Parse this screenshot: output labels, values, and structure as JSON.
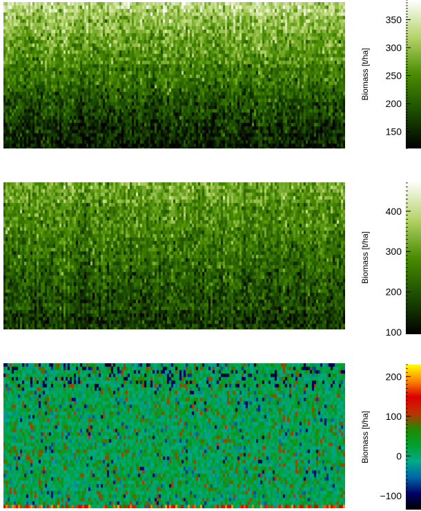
{
  "charts": [
    {
      "type": "heatmap",
      "colorbar": {
        "label": "Biomass [t/ha]",
        "range": [
          120,
          385
        ],
        "ticks": [
          150,
          200,
          250,
          300,
          350
        ],
        "colormap": [
          "#000000",
          "#1c4d00",
          "#4a8c00",
          "#b5d46a",
          "#ffffff"
        ]
      },
      "data_pattern": "vertical streaks; mean biomass increasing from bottom (~140) to top (~330)"
    },
    {
      "type": "heatmap",
      "colorbar": {
        "label": "Biomass [t/ha]",
        "range": [
          95,
          475
        ],
        "ticks": [
          100,
          200,
          300,
          400
        ],
        "colormap": [
          "#000000",
          "#1c4d00",
          "#4a8c00",
          "#b5d46a",
          "#ffffff"
        ]
      },
      "data_pattern": "vertical streaks; mean biomass increasing from bottom (~170) to top (~320)"
    },
    {
      "type": "heatmap",
      "colorbar": {
        "label": "Biomass [t/ha]",
        "range": [
          -135,
          230
        ],
        "ticks": [
          -100,
          0,
          100,
          200
        ],
        "colormap": [
          "#000000",
          "#000066",
          "#0066aa",
          "#00aa88",
          "#00a030",
          "#228800",
          "#c03000",
          "#dd0000",
          "#ff8800",
          "#ffff00"
        ]
      },
      "data_pattern": "difference field; mostly near 0 (green/teal) with scattered red and blue streaks"
    }
  ]
}
